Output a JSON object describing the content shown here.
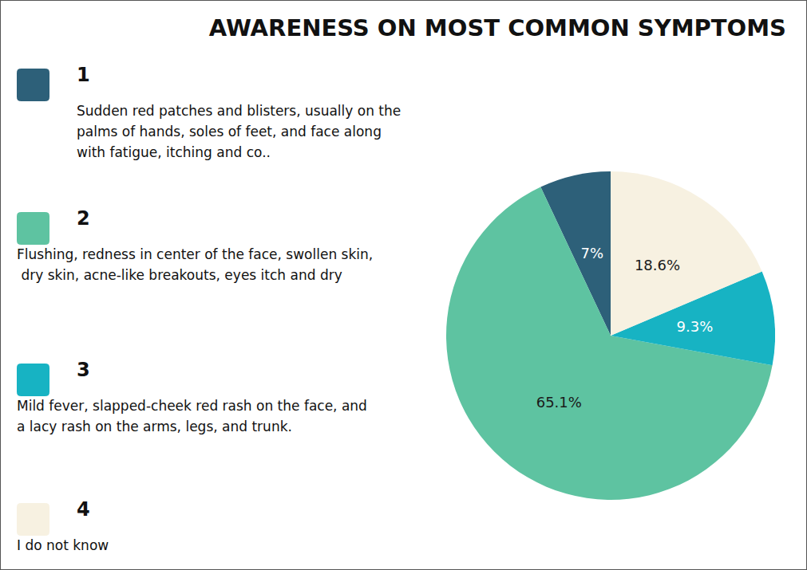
{
  "chart_data": {
    "type": "pie",
    "title": "AWARENESS ON MOST COMMON SYMPTOMS",
    "categories": [
      "1",
      "2",
      "3",
      "4"
    ],
    "descriptions": [
      "Sudden red patches and blisters, usually on the palms of hands, soles of feet, and face along with fatigue, itching and co..",
      "Flushing, redness in center of the face, swollen skin, dry skin, acne-like breakouts, eyes itch and dry",
      "Mild fever, slapped-cheek red rash on the face, and a lacy rash on the arms, legs, and trunk.",
      "I do not know"
    ],
    "values": [
      7,
      65.1,
      9.3,
      18.6
    ],
    "value_labels": [
      "7%",
      "65.1%",
      "9.3%",
      "18.6%"
    ],
    "colors": [
      "#2d6079",
      "#5ec3a1",
      "#17b3c3",
      "#f7f1e1"
    ],
    "data_labels": true,
    "legend": "left"
  }
}
